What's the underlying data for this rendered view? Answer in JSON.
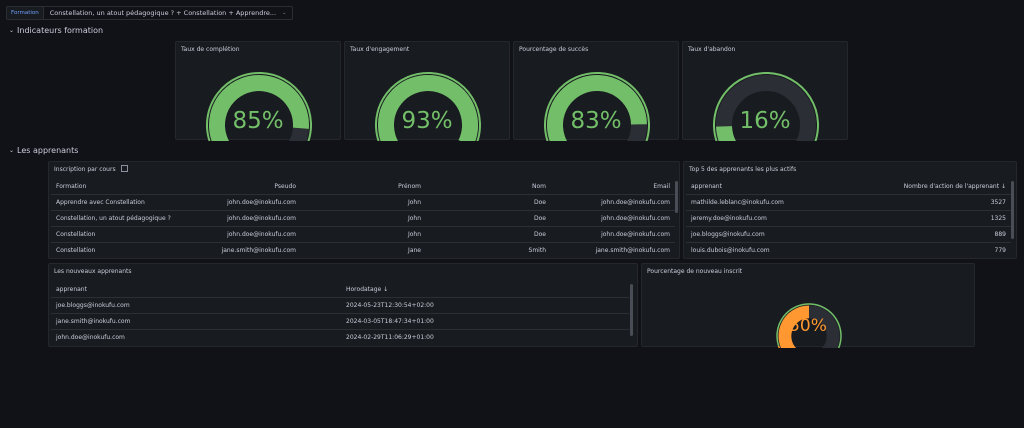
{
  "topbar": {
    "variable_label": "Formation",
    "variable_value": "Constellation, un atout pédagogique ? + Constellation + Apprendre...",
    "caret": "⌄"
  },
  "rows": {
    "indicateurs": "Indicateurs formation",
    "apprenants": "Les apprenants",
    "chevron": "⌄"
  },
  "gauges": [
    {
      "title": "Taux de complétion",
      "value": 85,
      "display": "85%"
    },
    {
      "title": "Taux d'engagement",
      "value": 93,
      "display": "93%"
    },
    {
      "title": "Pourcentage de succès",
      "value": 83,
      "display": "83%"
    },
    {
      "title": "Taux d'abandon",
      "value": 16,
      "display": "16%"
    },
    {
      "title": "Pourcentage de nouveau inscrit",
      "value": 50,
      "display": "50%"
    }
  ],
  "colors": {
    "green": "#73bf69",
    "orange": "#ff9830",
    "red": "#f2495c",
    "track": "#2b2e35"
  },
  "inscription": {
    "title": "Inscription par cours",
    "columns": [
      "Formation",
      "Pseudo",
      "Prénom",
      "Nom",
      "Email"
    ],
    "rows": [
      [
        "Apprendre avec Constellation",
        "john.doe@inokufu.com",
        "John",
        "Doe",
        "john.doe@inokufu.com"
      ],
      [
        "Constellation, un atout pédagogique ?",
        "john.doe@inokufu.com",
        "John",
        "Doe",
        "john.doe@inokufu.com"
      ],
      [
        "Constellation",
        "john.doe@inokufu.com",
        "John",
        "Doe",
        "john.doe@inokufu.com"
      ],
      [
        "Constellation",
        "jane.smith@inokufu.com",
        "Jane",
        "Smith",
        "jane.smith@inokufu.com"
      ]
    ]
  },
  "top5": {
    "title": "Top 5 des apprenants les plus actifs",
    "columns": [
      "apprenant",
      "Nombre d'action de l'apprenant ↓"
    ],
    "rows": [
      [
        "mathilde.leblanc@inokufu.com",
        "3527"
      ],
      [
        "jeremy.doe@inokufu.com",
        "1325"
      ],
      [
        "joe.bloggs@inokufu.com",
        "889"
      ],
      [
        "louis.dubois@inokufu.com",
        "779"
      ]
    ]
  },
  "nouveaux": {
    "title": "Les nouveaux apprenants",
    "columns": [
      "apprenant",
      "Horodatage ↓"
    ],
    "rows": [
      [
        "joe.bloggs@inokufu.com",
        "2024-05-23T12:30:54+02:00"
      ],
      [
        "jane.smith@inokufu.com",
        "2024-03-05T18:47:34+01:00"
      ],
      [
        "john.doe@inokufu.com",
        "2024-02-29T11:06:29+01:00"
      ]
    ]
  }
}
